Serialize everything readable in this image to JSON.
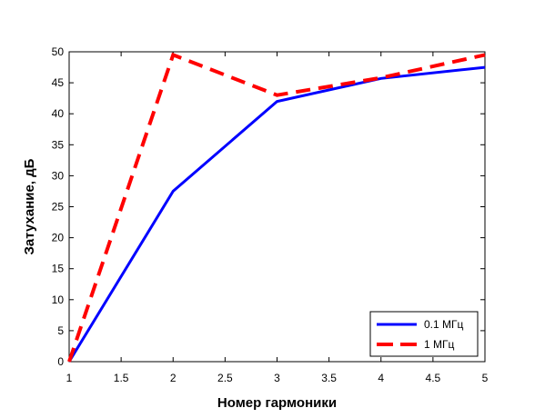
{
  "chart_data": {
    "type": "line",
    "title": "",
    "xlabel": "Номер гармоники",
    "ylabel": "Затухание, дБ",
    "xlim": [
      1,
      5
    ],
    "ylim": [
      0,
      50
    ],
    "xticks": [
      1,
      1.5,
      2,
      2.5,
      3,
      3.5,
      4,
      4.5,
      5
    ],
    "yticks": [
      0,
      5,
      10,
      15,
      20,
      25,
      30,
      35,
      40,
      45,
      50
    ],
    "grid": false,
    "legend_position": "bottom-right",
    "series": [
      {
        "name": "0.1 МГц",
        "color": "#0000ff",
        "style": "solid",
        "x": [
          1,
          2,
          3,
          4,
          5
        ],
        "y": [
          0,
          27.5,
          42,
          45.7,
          47.5
        ]
      },
      {
        "name": "1 МГц",
        "color": "#ff0000",
        "style": "dashed",
        "x": [
          1,
          2,
          3,
          4,
          5
        ],
        "y": [
          0,
          49.5,
          43,
          45.8,
          49.5
        ]
      }
    ]
  }
}
